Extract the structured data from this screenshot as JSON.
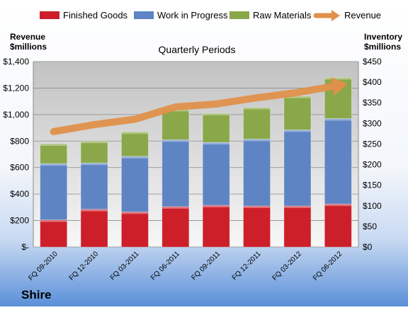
{
  "company": "Shire",
  "chart_data": {
    "type": "bar",
    "subtype": "stacked-bar-with-line",
    "title": "Quarterly Periods",
    "left_axis_label": [
      "Revenue",
      "$millions"
    ],
    "right_axis_label": [
      "Inventory",
      "$millions"
    ],
    "categories": [
      "FQ 09-2010",
      "FQ 12-2010",
      "FQ 03-2011",
      "FQ 06-2011",
      "FQ 09-2011",
      "FQ 12-2011",
      "FQ 03-2012",
      "FQ 06-2012"
    ],
    "left_axis": {
      "min": 0,
      "max": 1400,
      "step": 200,
      "tick_labels": [
        "$-",
        "$200",
        "$400",
        "$600",
        "$800",
        "$1,000",
        "$1,200",
        "$1,400"
      ]
    },
    "right_axis": {
      "min": 0,
      "max": 450,
      "step": 50,
      "tick_labels": [
        "$0",
        "$50",
        "$100",
        "$150",
        "$200",
        "$250",
        "$300",
        "$350",
        "$400",
        "$450"
      ]
    },
    "series": [
      {
        "name": "Finished Goods",
        "axis": "left",
        "kind": "bar",
        "color": "#cc1f2a",
        "values": [
          205,
          285,
          265,
          305,
          315,
          310,
          310,
          325
        ]
      },
      {
        "name": "Work in Progress",
        "axis": "left",
        "kind": "bar",
        "color": "#5e84c4",
        "values": [
          425,
          350,
          420,
          505,
          475,
          505,
          575,
          645
        ]
      },
      {
        "name": "Raw Materials",
        "axis": "left",
        "kind": "bar",
        "color": "#8aa849",
        "values": [
          150,
          165,
          185,
          230,
          220,
          240,
          255,
          310
        ]
      },
      {
        "name": "Revenue",
        "axis": "right",
        "kind": "line",
        "color": "#e0904a",
        "values": [
          280,
          297,
          310,
          340,
          347,
          362,
          375,
          392
        ]
      }
    ],
    "grid": true,
    "legend_position": "top"
  }
}
